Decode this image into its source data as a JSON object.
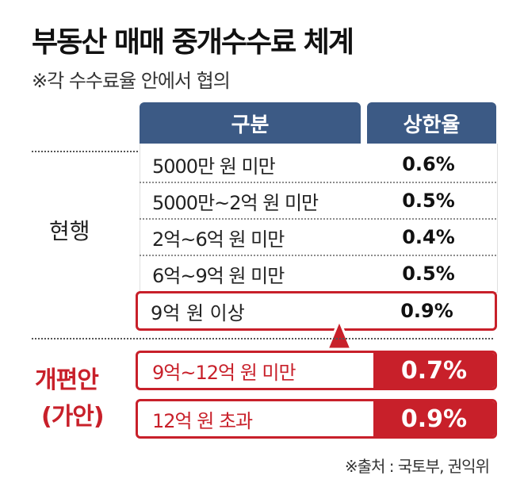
{
  "title": "부동산 매매 중개수수료 체계",
  "subtitle": "※각 수수료율 안에서 협의",
  "table": {
    "header_category": "구분",
    "header_rate": "상한율"
  },
  "current": {
    "label": "현행",
    "rows": [
      {
        "category": "5000만 원 미만",
        "rate": "0.6%"
      },
      {
        "category": "5000만~2억 원 미만",
        "rate": "0.5%"
      },
      {
        "category": "2억~6억 원 미만",
        "rate": "0.4%"
      },
      {
        "category": "6억~9억 원 미만",
        "rate": "0.5%"
      }
    ],
    "highlighted": {
      "category": "9억 원 이상",
      "rate": "0.9%"
    }
  },
  "proposal": {
    "label_line1": "개편안",
    "label_line2": "(가안)",
    "rows": [
      {
        "category": "9억~12억 원 미만",
        "rate": "0.7%"
      },
      {
        "category": "12억 원 초과",
        "rate": "0.9%"
      }
    ]
  },
  "source": "※출처 : 국토부, 권익위",
  "colors": {
    "header_blue": "#3c5a85",
    "accent_red": "#c8202a"
  }
}
